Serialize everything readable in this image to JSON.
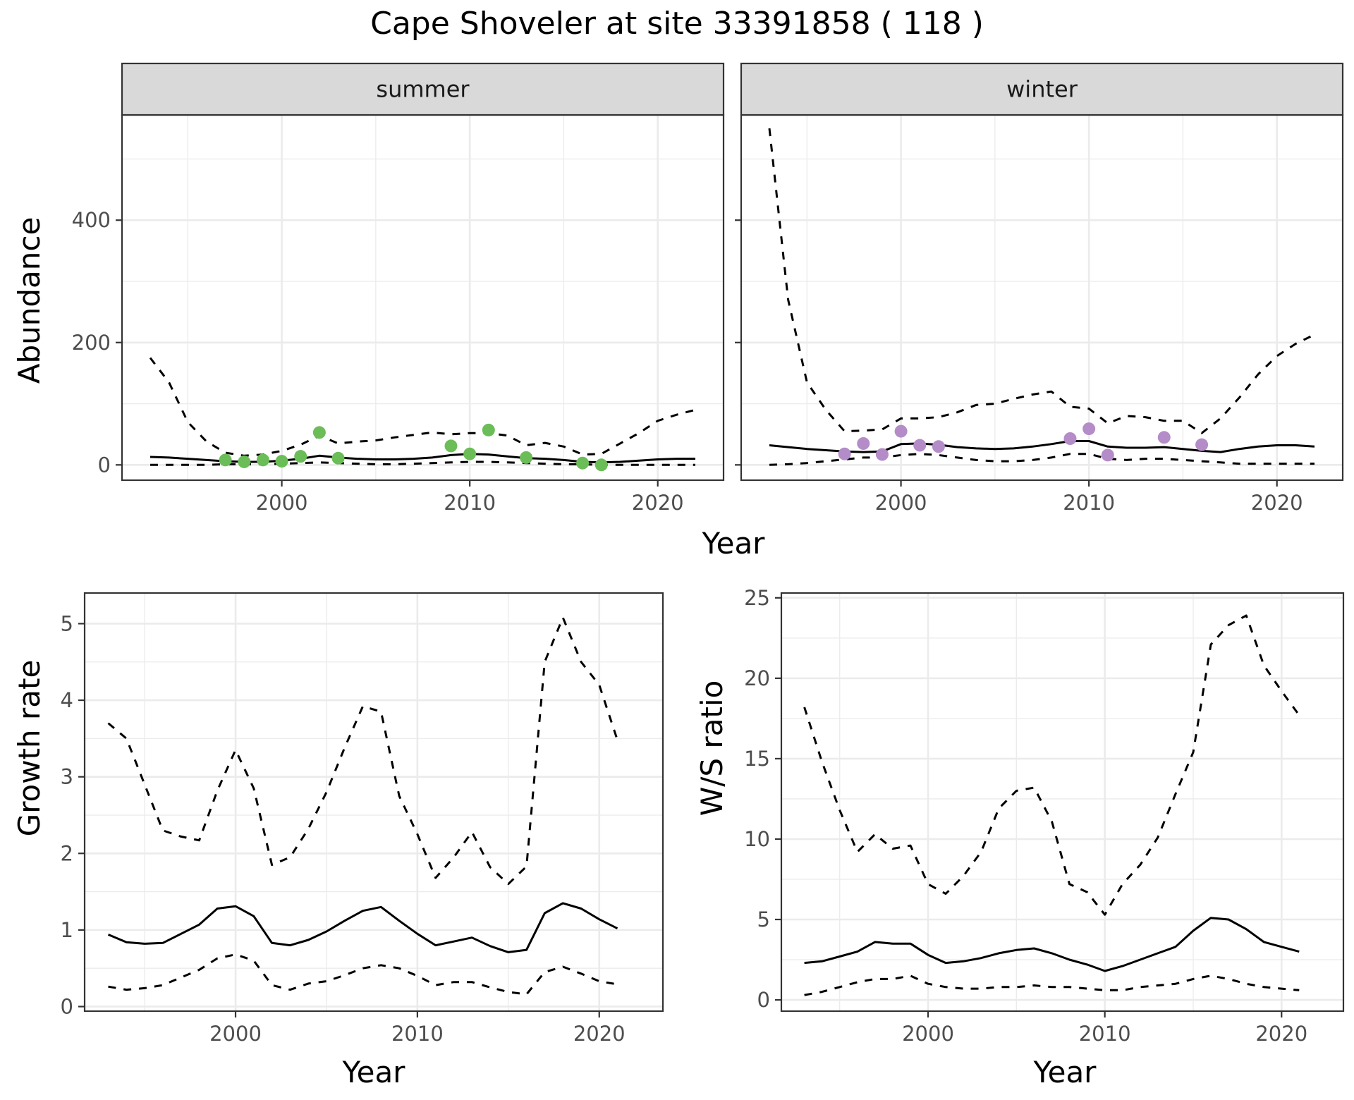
{
  "title": "Cape Shoveler at site 33391858 ( 118 )",
  "colors": {
    "summer_points": "#6bbd57",
    "winter_points": "#b48cc8",
    "line": "#000000",
    "grid": "#ebebeb",
    "strip_fill": "#d9d9d9"
  },
  "chart_data": [
    {
      "type": "line",
      "panel": "abundance-summer",
      "facet_label": "summer",
      "xlabel": "Year",
      "ylabel": "Abundance",
      "xlim": [
        1991.5,
        2023.5
      ],
      "ylim": [
        -25,
        572
      ],
      "x_ticks": [
        2000,
        2010,
        2020
      ],
      "y_ticks": [
        0,
        200,
        400
      ],
      "grid": true,
      "series": [
        {
          "style": "solid",
          "x": [
            1993,
            1994,
            1995,
            1996,
            1997,
            1998,
            1999,
            2000,
            2001,
            2002,
            2003,
            2004,
            2005,
            2006,
            2007,
            2008,
            2009,
            2010,
            2011,
            2012,
            2013,
            2014,
            2015,
            2016,
            2017,
            2018,
            2019,
            2020,
            2021,
            2022
          ],
          "values": [
            13,
            12,
            10,
            8,
            6,
            5,
            5,
            7,
            10,
            15,
            12,
            10,
            9,
            9,
            10,
            12,
            16,
            18,
            17,
            14,
            11,
            10,
            8,
            5,
            4,
            5,
            7,
            9,
            10,
            10
          ]
        },
        {
          "style": "dashed",
          "x": [
            1993,
            1994,
            1995,
            1996,
            1997,
            1998,
            1999,
            2000,
            2001,
            2002,
            2003,
            2004,
            2005,
            2006,
            2007,
            2008,
            2009,
            2010,
            2011,
            2012,
            2013,
            2014,
            2015,
            2016,
            2017,
            2018,
            2019,
            2020,
            2021,
            2022
          ],
          "values": [
            175,
            135,
            70,
            38,
            20,
            15,
            17,
            23,
            33,
            48,
            35,
            38,
            40,
            45,
            49,
            53,
            50,
            52,
            52,
            48,
            32,
            36,
            30,
            17,
            18,
            35,
            52,
            72,
            82,
            90
          ]
        },
        {
          "style": "dashed",
          "x": [
            1993,
            1994,
            1995,
            1996,
            1997,
            1998,
            1999,
            2000,
            2001,
            2002,
            2003,
            2004,
            2005,
            2006,
            2007,
            2008,
            2009,
            2010,
            2011,
            2012,
            2013,
            2014,
            2015,
            2016,
            2017,
            2018,
            2019,
            2020,
            2021,
            2022
          ],
          "values": [
            0,
            0,
            0,
            0,
            1,
            1,
            1,
            2,
            3,
            4,
            3,
            2,
            1,
            1,
            2,
            3,
            4,
            5,
            5,
            4,
            3,
            2,
            1,
            1,
            0,
            0,
            0,
            0,
            0,
            0
          ]
        }
      ],
      "points": {
        "x": [
          1997,
          1998,
          1999,
          2000,
          2001,
          2002,
          2003,
          2009,
          2010,
          2011,
          2013,
          2016,
          2017
        ],
        "values": [
          8,
          5,
          8,
          6,
          14,
          53,
          11,
          31,
          18,
          57,
          12,
          3,
          0
        ]
      }
    },
    {
      "type": "line",
      "panel": "abundance-winter",
      "facet_label": "winter",
      "xlabel": "Year",
      "ylabel": "",
      "xlim": [
        1991.5,
        2023.5
      ],
      "ylim": [
        -25,
        572
      ],
      "x_ticks": [
        2000,
        2010,
        2020
      ],
      "y_ticks": [
        0,
        200,
        400
      ],
      "grid": true,
      "series": [
        {
          "style": "solid",
          "x": [
            1993,
            1994,
            1995,
            1996,
            1997,
            1998,
            1999,
            2000,
            2001,
            2002,
            2003,
            2004,
            2005,
            2006,
            2007,
            2008,
            2009,
            2010,
            2011,
            2012,
            2013,
            2014,
            2015,
            2016,
            2017,
            2018,
            2019,
            2020,
            2021,
            2022
          ],
          "values": [
            32,
            29,
            26,
            24,
            22,
            21,
            22,
            34,
            35,
            33,
            29,
            27,
            26,
            27,
            30,
            34,
            39,
            39,
            30,
            28,
            28,
            29,
            26,
            23,
            21,
            26,
            30,
            32,
            32,
            30
          ]
        },
        {
          "style": "dashed",
          "x": [
            1993,
            1994,
            1995,
            1996,
            1997,
            1998,
            1999,
            2000,
            2001,
            2002,
            2003,
            2004,
            2005,
            2006,
            2007,
            2008,
            2009,
            2010,
            2011,
            2012,
            2013,
            2014,
            2015,
            2016,
            2017,
            2018,
            2019,
            2020,
            2021,
            2022
          ],
          "values": [
            550,
            270,
            135,
            90,
            55,
            56,
            58,
            76,
            76,
            78,
            86,
            98,
            100,
            108,
            115,
            120,
            95,
            92,
            68,
            80,
            78,
            72,
            72,
            52,
            76,
            110,
            148,
            178,
            198,
            213
          ]
        },
        {
          "style": "dashed",
          "x": [
            1993,
            1994,
            1995,
            1996,
            1997,
            1998,
            1999,
            2000,
            2001,
            2002,
            2003,
            2004,
            2005,
            2006,
            2007,
            2008,
            2009,
            2010,
            2011,
            2012,
            2013,
            2014,
            2015,
            2016,
            2017,
            2018,
            2019,
            2020,
            2021,
            2022
          ],
          "values": [
            0,
            1,
            3,
            6,
            9,
            12,
            12,
            16,
            18,
            16,
            12,
            8,
            6,
            6,
            8,
            12,
            18,
            18,
            10,
            8,
            10,
            10,
            8,
            6,
            4,
            2,
            2,
            2,
            2,
            2
          ]
        }
      ],
      "points": {
        "x": [
          1997,
          1998,
          1999,
          2000,
          2001,
          2002,
          2009,
          2010,
          2011,
          2014,
          2016
        ],
        "values": [
          18,
          35,
          17,
          55,
          32,
          30,
          43,
          59,
          16,
          45,
          33
        ]
      }
    },
    {
      "type": "line",
      "panel": "growth-rate",
      "xlabel": "Year",
      "ylabel": "Growth rate",
      "xlim": [
        1991.7,
        2023.5
      ],
      "ylim": [
        -0.06,
        5.4
      ],
      "x_ticks": [
        2000,
        2010,
        2020
      ],
      "y_ticks": [
        0,
        1,
        2,
        3,
        4,
        5
      ],
      "grid": true,
      "series": [
        {
          "style": "solid",
          "x": [
            1993,
            1994,
            1995,
            1996,
            1997,
            1998,
            1999,
            2000,
            2001,
            2002,
            2003,
            2004,
            2005,
            2006,
            2007,
            2008,
            2009,
            2010,
            2011,
            2012,
            2013,
            2014,
            2015,
            2016,
            2017,
            2018,
            2019,
            2020,
            2021
          ],
          "values": [
            0.94,
            0.84,
            0.82,
            0.83,
            0.95,
            1.07,
            1.28,
            1.31,
            1.18,
            0.83,
            0.8,
            0.87,
            0.98,
            1.12,
            1.25,
            1.3,
            1.12,
            0.95,
            0.8,
            0.85,
            0.9,
            0.79,
            0.71,
            0.74,
            1.22,
            1.35,
            1.28,
            1.14,
            1.02
          ]
        },
        {
          "style": "dashed",
          "x": [
            1993,
            1994,
            1995,
            1996,
            1997,
            1998,
            1999,
            2000,
            2001,
            2002,
            2003,
            2004,
            2005,
            2006,
            2007,
            2008,
            2009,
            2010,
            2011,
            2012,
            2013,
            2014,
            2015,
            2016,
            2017,
            2018,
            2019,
            2020,
            2021
          ],
          "values": [
            3.7,
            3.5,
            2.9,
            2.3,
            2.22,
            2.17,
            2.82,
            3.35,
            2.85,
            1.85,
            1.95,
            2.32,
            2.8,
            3.38,
            3.92,
            3.85,
            2.75,
            2.25,
            1.68,
            1.95,
            2.28,
            1.82,
            1.6,
            1.83,
            4.5,
            5.08,
            4.5,
            4.2,
            3.48
          ]
        },
        {
          "style": "dashed",
          "x": [
            1993,
            1994,
            1995,
            1996,
            1997,
            1998,
            1999,
            2000,
            2001,
            2002,
            2003,
            2004,
            2005,
            2006,
            2007,
            2008,
            2009,
            2010,
            2011,
            2012,
            2013,
            2014,
            2015,
            2016,
            2017,
            2018,
            2019,
            2020,
            2021
          ],
          "values": [
            0.26,
            0.22,
            0.24,
            0.28,
            0.38,
            0.48,
            0.63,
            0.68,
            0.6,
            0.28,
            0.22,
            0.3,
            0.33,
            0.41,
            0.5,
            0.54,
            0.5,
            0.4,
            0.28,
            0.32,
            0.32,
            0.25,
            0.19,
            0.16,
            0.45,
            0.52,
            0.43,
            0.33,
            0.29
          ]
        }
      ]
    },
    {
      "type": "line",
      "panel": "ws-ratio",
      "xlabel": "Year",
      "ylabel": "W/S ratio",
      "xlim": [
        1991.7,
        2023.5
      ],
      "ylim": [
        -0.7,
        25.3
      ],
      "x_ticks": [
        2000,
        2010,
        2020
      ],
      "y_ticks": [
        0,
        5,
        10,
        15,
        20,
        25
      ],
      "grid": true,
      "series": [
        {
          "style": "solid",
          "x": [
            1993,
            1994,
            1995,
            1996,
            1997,
            1998,
            1999,
            2000,
            2001,
            2002,
            2003,
            2004,
            2005,
            2006,
            2007,
            2008,
            2009,
            2010,
            2011,
            2012,
            2013,
            2014,
            2015,
            2016,
            2017,
            2018,
            2019,
            2020,
            2021
          ],
          "values": [
            2.3,
            2.4,
            2.7,
            3.0,
            3.6,
            3.5,
            3.5,
            2.8,
            2.3,
            2.4,
            2.6,
            2.9,
            3.1,
            3.2,
            2.9,
            2.5,
            2.2,
            1.8,
            2.1,
            2.5,
            2.9,
            3.3,
            4.3,
            5.1,
            5.0,
            4.4,
            3.6,
            3.3,
            3.0
          ]
        },
        {
          "style": "dashed",
          "x": [
            1993,
            1994,
            1995,
            1996,
            1997,
            1998,
            1999,
            2000,
            2001,
            2002,
            2003,
            2004,
            2005,
            2006,
            2007,
            2008,
            2009,
            2010,
            2011,
            2012,
            2013,
            2014,
            2015,
            2016,
            2017,
            2018,
            2019,
            2020,
            2021
          ],
          "values": [
            18.2,
            14.8,
            11.8,
            9.2,
            10.3,
            9.4,
            9.6,
            7.2,
            6.6,
            7.7,
            9.2,
            11.9,
            13.0,
            13.2,
            11.1,
            7.2,
            6.7,
            5.3,
            7.2,
            8.4,
            10.1,
            12.8,
            15.4,
            22.1,
            23.3,
            23.9,
            20.8,
            19.2,
            17.7
          ]
        },
        {
          "style": "dashed",
          "x": [
            1993,
            1994,
            1995,
            1996,
            1997,
            1998,
            1999,
            2000,
            2001,
            2002,
            2003,
            2004,
            2005,
            2006,
            2007,
            2008,
            2009,
            2010,
            2011,
            2012,
            2013,
            2014,
            2015,
            2016,
            2017,
            2018,
            2019,
            2020,
            2021
          ],
          "values": [
            0.3,
            0.5,
            0.8,
            1.1,
            1.3,
            1.3,
            1.5,
            1.0,
            0.8,
            0.7,
            0.7,
            0.8,
            0.8,
            0.9,
            0.8,
            0.8,
            0.7,
            0.6,
            0.6,
            0.8,
            0.9,
            1.0,
            1.3,
            1.5,
            1.3,
            1.0,
            0.8,
            0.7,
            0.6
          ]
        }
      ]
    }
  ]
}
